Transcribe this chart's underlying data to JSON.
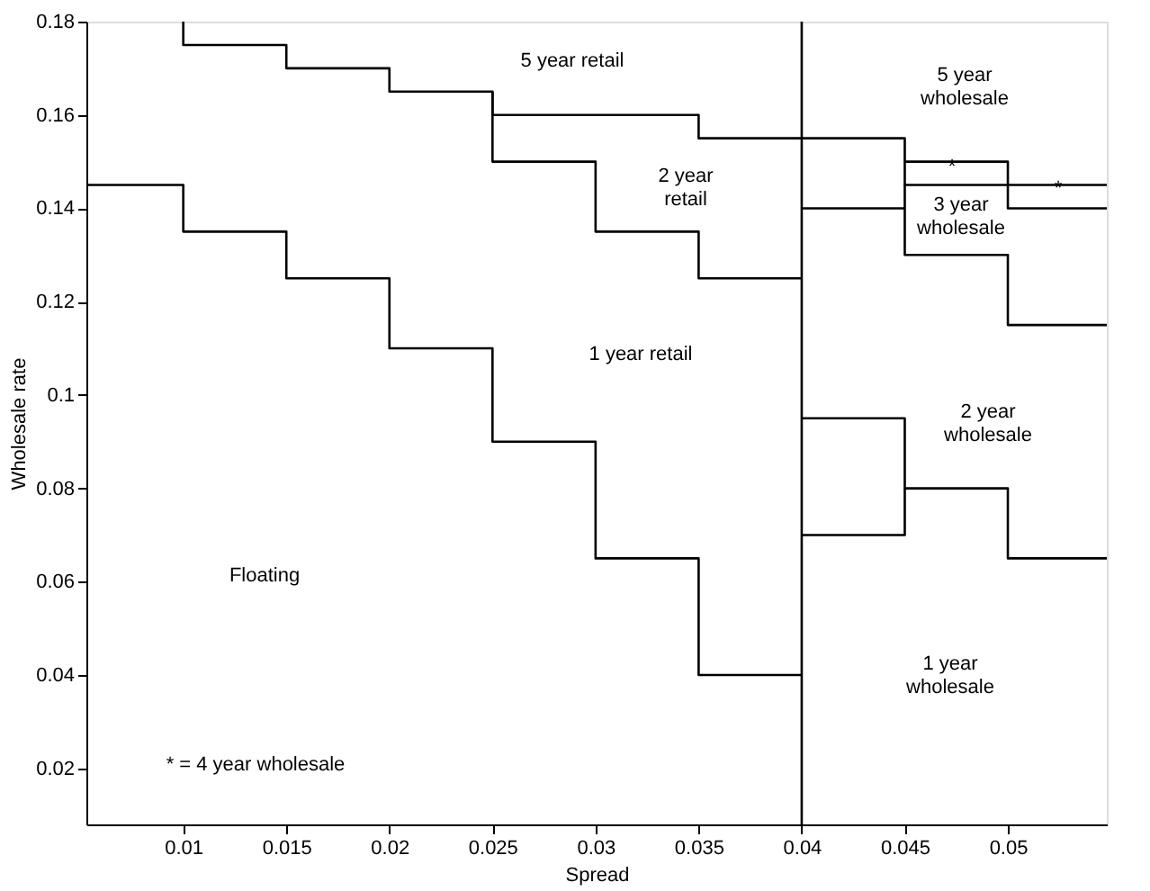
{
  "chart_data": {
    "type": "step",
    "xlabel": "Spread",
    "ylabel": "Wholesale rate",
    "xlim": [
      0.0053,
      0.0548
    ],
    "ylim": [
      0.008,
      0.18
    ],
    "xticks": [
      0.01,
      0.015,
      0.02,
      0.025,
      0.03,
      0.035,
      0.04,
      0.045,
      0.05
    ],
    "yticks": [
      0.02,
      0.04,
      0.06,
      0.08,
      0.1,
      0.12,
      0.14,
      0.16,
      0.18
    ],
    "grid": false,
    "line_style": "solid",
    "marker": "none",
    "series": [
      {
        "color": "#000000",
        "x": [
          0.0053,
          0.01,
          0.015,
          0.02,
          0.025,
          0.03,
          0.035,
          0.04
        ],
        "values": [
          0.145,
          0.135,
          0.125,
          0.11,
          0.09,
          0.065,
          0.04,
          0.04
        ]
      },
      {
        "color": "#000000",
        "x": [
          0.01,
          0.01,
          0.015,
          0.02,
          0.025,
          0.035,
          0.045,
          0.05,
          0.0548
        ],
        "values": [
          0.18,
          0.175,
          0.17,
          0.165,
          0.16,
          0.155,
          0.15,
          0.145,
          0.145
        ]
      },
      {
        "color": "#000000",
        "x": [
          0.025,
          0.025,
          0.03,
          0.035,
          0.04
        ],
        "values": [
          0.165,
          0.15,
          0.135,
          0.125,
          0.125
        ]
      },
      {
        "color": "#000000",
        "x": [
          0.045,
          0.045,
          0.05,
          0.0548
        ],
        "values": [
          0.15,
          0.145,
          0.14,
          0.14
        ]
      },
      {
        "color": "#000000",
        "x": [
          0.04,
          0.045,
          0.045,
          0.05,
          0.0548
        ],
        "values": [
          0.14,
          0.145,
          0.13,
          0.115,
          0.115
        ]
      },
      {
        "color": "#000000",
        "x": [
          0.04,
          0.045,
          0.05,
          0.0548
        ],
        "values": [
          0.095,
          0.08,
          0.065,
          0.065
        ]
      },
      {
        "color": "#000000",
        "x": [
          0.04,
          0.045,
          0.045
        ],
        "values": [
          0.07,
          0.07,
          0.08
        ]
      }
    ],
    "ref_lines": [
      {
        "axis": "x",
        "value": 0.04,
        "color": "#000000"
      }
    ],
    "annotations": [
      "5 year retail",
      "5 year\nwholesale",
      "2 year\nretail",
      "3 year\nwholesale",
      "*",
      "*",
      "1 year retail",
      "2 year\nwholesale",
      "Floating",
      "1 year\nwholesale",
      "* = 4 year wholesale"
    ]
  }
}
